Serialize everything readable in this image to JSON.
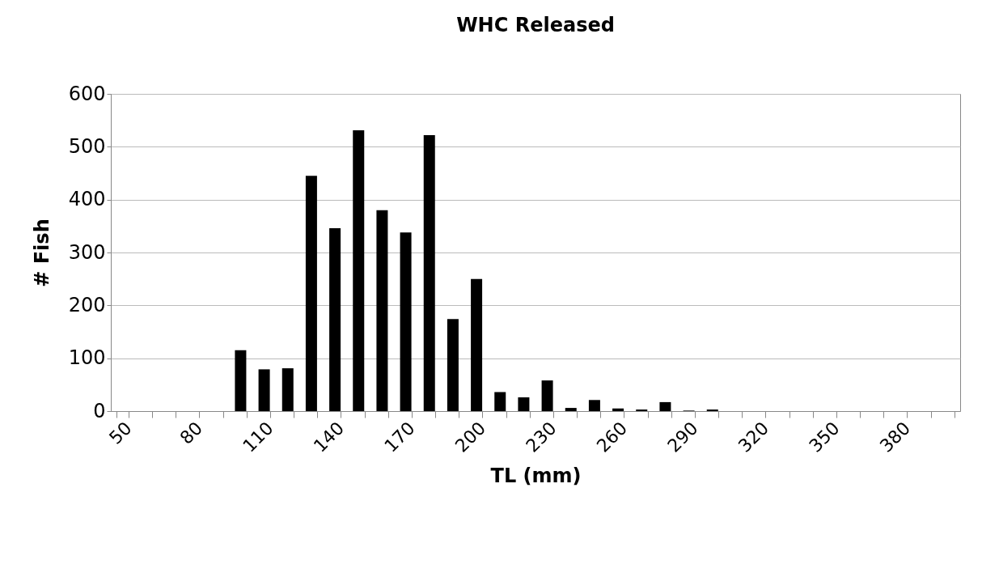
{
  "chart_data": {
    "type": "bar",
    "title": "WHC Released",
    "xlabel": "TL (mm)",
    "ylabel": "# Fish",
    "categories": [
      "50",
      null,
      null,
      "80",
      null,
      null,
      "110",
      null,
      null,
      "140",
      null,
      null,
      "170",
      null,
      null,
      "200",
      null,
      null,
      "230",
      null,
      null,
      "260",
      null,
      null,
      "290",
      null,
      null,
      "320",
      null,
      null,
      "350",
      null,
      null,
      "380",
      null,
      null
    ],
    "values": [
      0,
      0,
      0,
      0,
      0,
      115,
      79,
      81,
      445,
      346,
      531,
      380,
      338,
      522,
      174,
      250,
      36,
      26,
      58,
      6,
      21,
      5,
      3,
      17,
      1,
      3,
      0,
      0,
      0,
      0,
      0,
      0,
      0,
      0,
      0,
      0
    ],
    "color": "#000000",
    "ylim": [
      0,
      600
    ],
    "yticks": [
      0,
      100,
      200,
      300,
      400,
      500,
      600
    ],
    "grid": "y"
  }
}
